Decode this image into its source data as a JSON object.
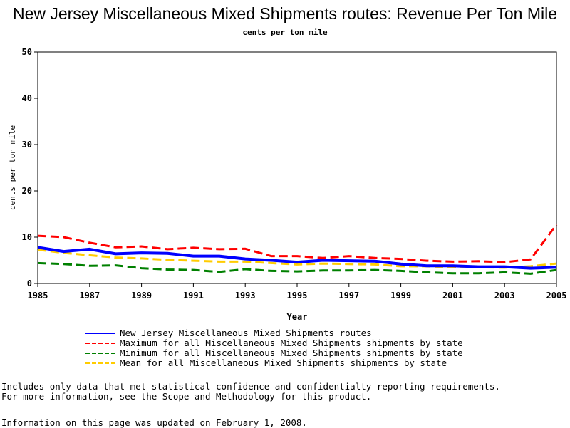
{
  "page": {
    "title": "New Jersey Miscellaneous Mixed Shipments routes: Revenue Per Ton Mile",
    "subtitle": "cents per ton mile",
    "notes": [
      "Includes only data that met statistical confidence and confidentialty reporting requirements.",
      "For more information, see the Scope and Methodology for this product."
    ],
    "updated": "Information on this page was updated on February 1, 2008."
  },
  "chart_data": {
    "type": "line",
    "title": "New Jersey Miscellaneous Mixed Shipments routes: Revenue Per Ton Mile",
    "subtitle": "cents per ton mile",
    "xlabel": "Year",
    "ylabel": "cents per ton mile",
    "xlim": [
      1985,
      2005
    ],
    "ylim": [
      0,
      50
    ],
    "x_ticks": [
      "1985",
      "1987",
      "1989",
      "1991",
      "1993",
      "1995",
      "1997",
      "1999",
      "2001",
      "2003",
      "2005"
    ],
    "y_ticks": [
      "0",
      "10",
      "20",
      "30",
      "40",
      "50"
    ],
    "grid": false,
    "legend_position": "bottom",
    "x": [
      1985,
      1986,
      1987,
      1988,
      1989,
      1990,
      1991,
      1992,
      1993,
      1994,
      1995,
      1996,
      1997,
      1998,
      1999,
      2000,
      2001,
      2002,
      2003,
      2004,
      2005
    ],
    "series": [
      {
        "name": "New Jersey Miscellaneous Mixed Shipments routes",
        "color": "#0000ff",
        "style": "solid",
        "values": [
          7.8,
          6.9,
          7.4,
          6.4,
          6.6,
          6.5,
          5.9,
          5.9,
          5.3,
          5.0,
          4.6,
          5.0,
          4.9,
          4.8,
          4.2,
          3.8,
          3.8,
          3.6,
          3.6,
          3.3,
          3.5
        ]
      },
      {
        "name": "Maximum for all Miscellaneous Mixed Shipments shipments by state",
        "color": "#ff0000",
        "style": "dashed",
        "values": [
          10.3,
          10.0,
          8.8,
          7.8,
          8.0,
          7.4,
          7.7,
          7.4,
          7.5,
          5.9,
          5.9,
          5.5,
          5.9,
          5.5,
          5.3,
          4.9,
          4.7,
          4.8,
          4.6,
          5.2,
          12.7
        ]
      },
      {
        "name": "Minimum for all Miscellaneous Mixed Shipments shipments by state",
        "color": "#008000",
        "style": "dashed",
        "values": [
          4.4,
          4.2,
          3.8,
          3.9,
          3.3,
          3.0,
          2.9,
          2.5,
          3.1,
          2.7,
          2.6,
          2.8,
          2.8,
          2.9,
          2.7,
          2.4,
          2.2,
          2.2,
          2.4,
          2.1,
          2.9
        ]
      },
      {
        "name": "Mean for all Miscellaneous Mixed Shipments shipments by state",
        "color": "#ffcc00",
        "style": "dashed",
        "values": [
          7.3,
          6.6,
          6.1,
          5.6,
          5.4,
          5.1,
          4.9,
          4.7,
          4.7,
          4.4,
          4.1,
          4.3,
          4.2,
          4.1,
          3.7,
          3.7,
          3.5,
          3.5,
          3.4,
          3.7,
          4.3
        ]
      }
    ]
  }
}
